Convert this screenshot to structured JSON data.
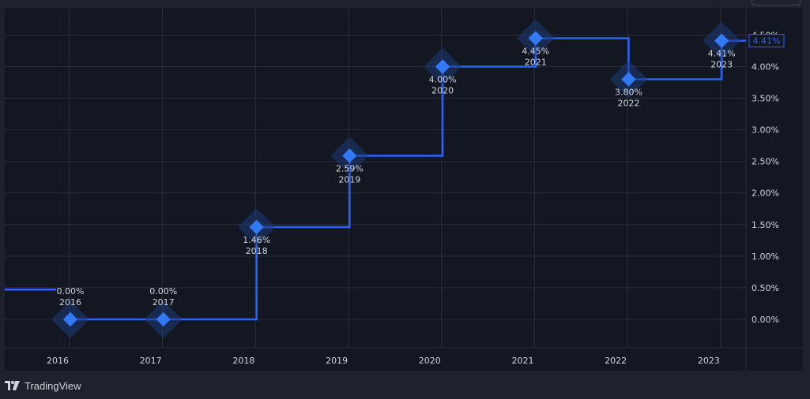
{
  "chart_data": {
    "type": "line",
    "step": true,
    "x": [
      "2016",
      "2017",
      "2018",
      "2019",
      "2020",
      "2021",
      "2022",
      "2023"
    ],
    "values": [
      0.0,
      0.0,
      1.46,
      2.59,
      4.0,
      4.45,
      3.8,
      4.41
    ],
    "point_labels": [
      "0.00%",
      "0.00%",
      "1.46%",
      "2.59%",
      "4.00%",
      "4.45%",
      "3.80%",
      "4.41%"
    ],
    "y_ticks": [
      "0.00%",
      "0.50%",
      "1.00%",
      "1.50%",
      "2.00%",
      "2.50%",
      "3.00%",
      "3.50%",
      "4.00%",
      "4.50%"
    ],
    "y_tick_values": [
      0,
      0.5,
      1,
      1.5,
      2,
      2.5,
      3,
      3.5,
      4,
      4.5
    ],
    "ylim": [
      -0.45,
      4.93
    ],
    "prior_value": 0.47,
    "last_value_label": "4.41%",
    "grid": true
  },
  "colors": {
    "background": "#131722",
    "frame": "#1e222d",
    "grid": "#2a2e39",
    "line": "#2962ff",
    "marker": "#3179f5",
    "halo": "#1f3a78",
    "text": "#d1d4dc"
  },
  "footer": {
    "brand": "TradingView",
    "logo_icon": "tradingview-logo-icon"
  }
}
